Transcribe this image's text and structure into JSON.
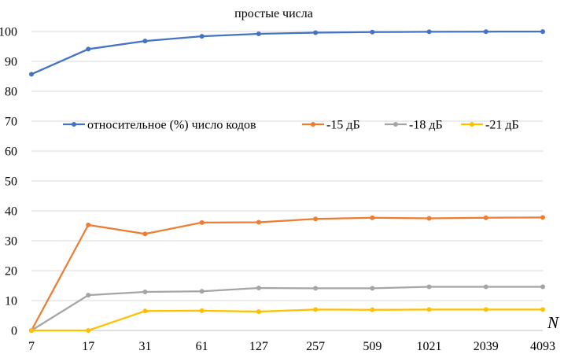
{
  "chart_data": {
    "type": "line",
    "title": "простые числа",
    "xlabel": "N",
    "ylabel": "",
    "categories": [
      "7",
      "17",
      "31",
      "61",
      "127",
      "257",
      "509",
      "1021",
      "2039",
      "4093"
    ],
    "ylim": [
      0,
      100
    ],
    "yticks": [
      0,
      10,
      20,
      30,
      40,
      50,
      60,
      70,
      80,
      90,
      100
    ],
    "grid": {
      "horizontal": true,
      "vertical": false
    },
    "legend_position": "middle",
    "series": [
      {
        "name": "относительное (%) число кодов",
        "color": "#4472C4",
        "values": [
          85.7,
          94.1,
          96.8,
          98.4,
          99.2,
          99.6,
          99.8,
          99.9,
          99.95,
          99.98
        ]
      },
      {
        "name": "-15 дБ",
        "color": "#ED7D31",
        "values": [
          0,
          35.3,
          32.3,
          36.1,
          36.2,
          37.3,
          37.7,
          37.5,
          37.7,
          37.8
        ]
      },
      {
        "name": "-18 дБ",
        "color": "#A5A5A5",
        "values": [
          0,
          11.8,
          12.9,
          13.1,
          14.2,
          14.1,
          14.1,
          14.6,
          14.6,
          14.6
        ]
      },
      {
        "name": "-21 дБ",
        "color": "#FFC000",
        "values": [
          0,
          0,
          6.5,
          6.6,
          6.3,
          7.0,
          6.9,
          7.0,
          7.0,
          7.0
        ]
      }
    ]
  },
  "styles": {
    "grid_color": "#D9D9D9",
    "axis_color": "#BFBFBF"
  }
}
